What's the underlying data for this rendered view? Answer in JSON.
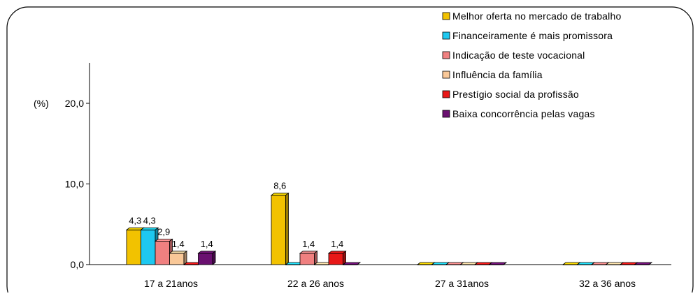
{
  "chart_data": {
    "type": "bar",
    "ylabel": "(%)",
    "ylim": [
      0,
      25
    ],
    "yticks": [
      "0,0",
      "10,0",
      "20,0"
    ],
    "categories": [
      "17 a 21anos",
      "22 a 26 anos",
      "27 a 31anos",
      "32 a 36 anos"
    ],
    "series": [
      {
        "name": "Melhor oferta no mercado de trabalho",
        "color": "#f2c200",
        "values": [
          4.3,
          8.6,
          0,
          0
        ],
        "labels": [
          "4,3",
          "8,6",
          "",
          ""
        ]
      },
      {
        "name": "Financeiramente é mais promissora",
        "color": "#1ec8f0",
        "values": [
          4.3,
          0,
          0,
          0
        ],
        "labels": [
          "4,3",
          "",
          "",
          ""
        ]
      },
      {
        "name": "Indicação de teste vocacional",
        "color": "#f08080",
        "values": [
          2.9,
          1.4,
          0,
          0
        ],
        "labels": [
          "2,9",
          "1,4",
          "",
          ""
        ]
      },
      {
        "name": "Influência da família",
        "color": "#f9c898",
        "values": [
          1.4,
          0,
          0,
          0
        ],
        "labels": [
          "1,4",
          "",
          "",
          ""
        ]
      },
      {
        "name": "Prestígio social da profissão",
        "color": "#e81818",
        "values": [
          0,
          1.4,
          0,
          0
        ],
        "labels": [
          "",
          "1,4",
          "",
          ""
        ]
      },
      {
        "name": "Baixa concorrência pelas vagas",
        "color": "#6a1070",
        "values": [
          1.4,
          0,
          0,
          0
        ],
        "labels": [
          "1,4",
          "",
          "",
          ""
        ]
      }
    ],
    "legend_position": "top-right",
    "grid": false
  }
}
